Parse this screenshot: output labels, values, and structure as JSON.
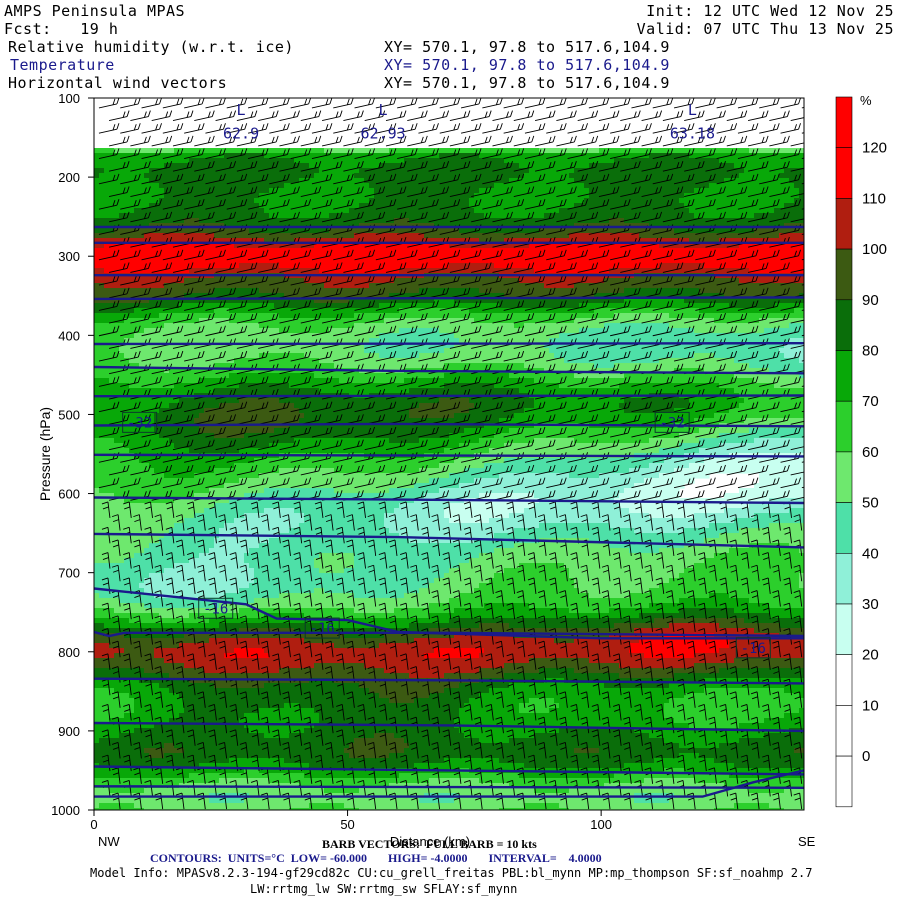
{
  "header": {
    "title": "AMPS Peninsula MPAS",
    "fcst": "Fcst:   19 h",
    "init": "Init: 12 UTC Wed 12 Nov 25",
    "valid": "Valid: 07 UTC Thu 13 Nov 25",
    "fields": [
      {
        "name": "Relative humidity (w.r.t. ice)",
        "xy": "XY= 570.1, 97.8 to 517.6,104.9"
      },
      {
        "name": "Temperature",
        "xy": "XY= 570.1, 97.8 to 517.6,104.9"
      },
      {
        "name": "Horizontal wind vectors",
        "xy": "XY= 570.1, 97.8 to 517.6,104.9"
      }
    ]
  },
  "colors": {
    "rh_bins": [
      "#ffffff",
      "#ffffff",
      "#ffffff",
      "#c8fff0",
      "#8ff0d8",
      "#4ee0a8",
      "#6ee86e",
      "#2ccf2c",
      "#08a808",
      "#0a6e0a",
      "#3c5a12",
      "#b01e10",
      "#ff0000"
    ],
    "contour": "#1a1a8c",
    "barb": "#000000"
  },
  "chart_data": {
    "type": "heatmap",
    "title": "Relative humidity (w.r.t. ice)",
    "xlabel": "Distance (km)",
    "ylabel": "Pressure (hPa)",
    "x_ticks": [
      0,
      50,
      100
    ],
    "xlim": [
      0,
      140
    ],
    "y_ticks": [
      100,
      200,
      300,
      400,
      500,
      600,
      700,
      800,
      900,
      1000
    ],
    "ylim": [
      1000,
      100
    ],
    "left_end_label": "NW",
    "right_end_label": "SE",
    "colorbar": {
      "unit": "%",
      "tick_labels": [
        "120",
        "110",
        "100",
        "90",
        "80",
        "70",
        "60",
        "50",
        "40",
        "30",
        "20",
        "10",
        "0"
      ]
    },
    "temperature_contour_labels": [
      {
        "text": "-32",
        "x": 9,
        "p": 510
      },
      {
        "text": "-32",
        "x": 114,
        "p": 510
      },
      {
        "text": "-16",
        "x": 24,
        "p": 745
      },
      {
        "text": "-16",
        "x": 45,
        "p": 770
      },
      {
        "text": "-16",
        "x": 130,
        "p": 795
      }
    ],
    "low_markers": [
      {
        "text": "L",
        "x": 29,
        "p": 115
      },
      {
        "text": "62.9",
        "x": 29,
        "p": 145
      },
      {
        "text": "L",
        "x": 57,
        "p": 115
      },
      {
        "text": "62.93",
        "x": 57,
        "p": 145
      },
      {
        "text": "L",
        "x": 118,
        "p": 115
      },
      {
        "text": "63.18",
        "x": 118,
        "p": 145
      }
    ]
  },
  "footer": {
    "barb": "BARB VECTORS:  FULL BARB = 10 kts",
    "contours": "CONTOURS:  UNITS=°C  LOW= -60.000       HIGH= -4.0000       INTERVAL=    4.0000",
    "model_info": "Model Info: MPASv8.2.3-194-gf29cd82c CU:cu_grell_freitas PBL:bl_mynn MP:mp_thompson SF:sf_noahmp 2.7",
    "model_info2": "LW:rrtmg_lw SW:rrtmg_sw SFLAY:sf_mynn"
  }
}
